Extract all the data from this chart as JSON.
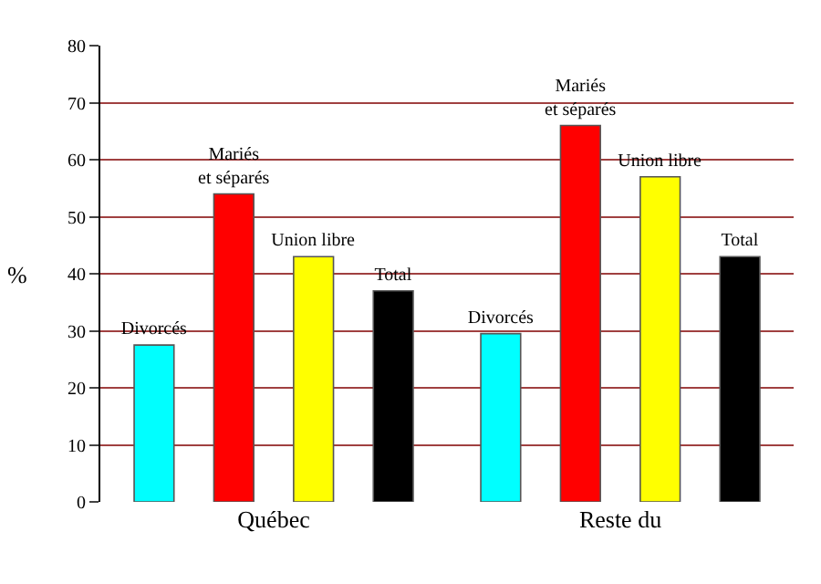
{
  "chart_data": {
    "type": "bar",
    "ylabel": "%",
    "categories": [
      "Québec",
      "Reste du"
    ],
    "series": [
      {
        "name": "Divorcés",
        "color": "#00ffff",
        "values": [
          27.5,
          29.5
        ]
      },
      {
        "name": "Mariés\net séparés",
        "color": "#ff0000",
        "values": [
          54,
          66
        ]
      },
      {
        "name": "Union libre",
        "color": "#ffff00",
        "values": [
          43,
          57
        ]
      },
      {
        "name": "Total",
        "color": "#000000",
        "values": [
          37,
          43
        ]
      }
    ],
    "ylim": [
      0,
      80
    ],
    "yticks": [
      0,
      10,
      20,
      30,
      40,
      50,
      60,
      70,
      80
    ],
    "grid": "y",
    "legend": false
  }
}
